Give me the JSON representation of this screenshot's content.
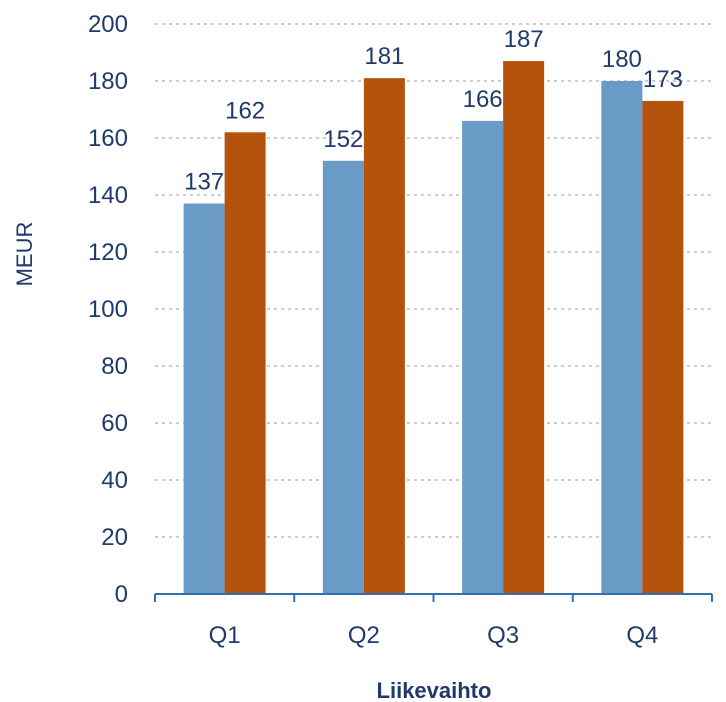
{
  "chart_data": {
    "type": "bar",
    "categories": [
      "Q1",
      "Q2",
      "Q3",
      "Q4"
    ],
    "series": [
      {
        "values": [
          137,
          152,
          166,
          180
        ],
        "color": "#6a9bc6"
      },
      {
        "values": [
          162,
          181,
          187,
          173
        ],
        "color": "#b5520c"
      }
    ],
    "yticks": [
      0,
      20,
      40,
      60,
      80,
      100,
      120,
      140,
      160,
      180,
      200
    ],
    "ylim": [
      0,
      200
    ],
    "ylabel": "MEUR",
    "xlabel": "Liikevaihto",
    "title": "",
    "grid": true,
    "data_labels": true
  }
}
